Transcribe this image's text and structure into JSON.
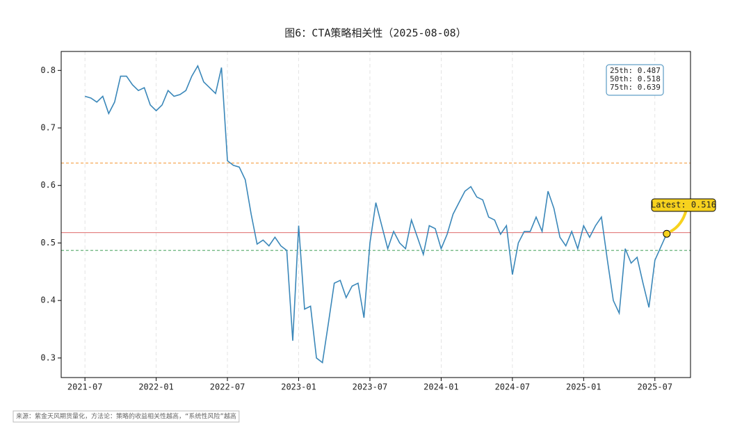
{
  "chart_data": {
    "type": "line",
    "title": "图6：CTA策略相关性（2025-08-08）",
    "source": "来源：紫金天风期货量化，方法论：策略的收益相关性越高，“系统性风险”越高",
    "x": [
      "2021-07",
      "2021-07",
      "2021-08",
      "2021-08",
      "2021-09",
      "2021-09",
      "2021-10",
      "2021-10",
      "2021-11",
      "2021-11",
      "2021-12",
      "2021-12",
      "2022-01",
      "2022-01",
      "2022-02",
      "2022-02",
      "2022-03",
      "2022-03",
      "2022-04",
      "2022-04",
      "2022-05",
      "2022-05",
      "2022-06",
      "2022-06",
      "2022-07",
      "2022-07",
      "2022-08",
      "2022-08",
      "2022-09",
      "2022-09",
      "2022-10",
      "2022-10",
      "2022-11",
      "2022-11",
      "2022-12",
      "2022-12",
      "2023-01",
      "2023-01",
      "2023-02",
      "2023-02",
      "2023-03",
      "2023-03",
      "2023-04",
      "2023-04",
      "2023-05",
      "2023-05",
      "2023-06",
      "2023-06",
      "2023-07",
      "2023-07",
      "2023-08",
      "2023-08",
      "2023-09",
      "2023-09",
      "2023-10",
      "2023-10",
      "2023-11",
      "2023-11",
      "2023-12",
      "2023-12",
      "2024-01",
      "2024-01",
      "2024-02",
      "2024-02",
      "2024-03",
      "2024-03",
      "2024-04",
      "2024-04",
      "2024-05",
      "2024-05",
      "2024-06",
      "2024-06",
      "2024-07",
      "2024-07",
      "2024-08",
      "2024-08",
      "2024-09",
      "2024-09",
      "2024-10",
      "2024-10",
      "2024-11",
      "2024-11",
      "2024-12",
      "2024-12",
      "2025-01",
      "2025-01",
      "2025-02",
      "2025-02",
      "2025-03",
      "2025-03",
      "2025-04",
      "2025-04",
      "2025-05",
      "2025-05",
      "2025-06",
      "2025-06",
      "2025-07",
      "2025-07",
      "2025-08"
    ],
    "series": [
      {
        "name": "CTA策略相关性",
        "color": "#3a87b9",
        "values": [
          0.755,
          0.752,
          0.745,
          0.755,
          0.725,
          0.745,
          0.79,
          0.79,
          0.775,
          0.765,
          0.77,
          0.74,
          0.73,
          0.74,
          0.765,
          0.755,
          0.758,
          0.765,
          0.79,
          0.808,
          0.78,
          0.77,
          0.76,
          0.805,
          0.643,
          0.635,
          0.632,
          0.61,
          0.55,
          0.498,
          0.505,
          0.495,
          0.51,
          0.495,
          0.487,
          0.33,
          0.53,
          0.385,
          0.39,
          0.3,
          0.292,
          0.36,
          0.43,
          0.435,
          0.405,
          0.425,
          0.43,
          0.37,
          0.5,
          0.57,
          0.53,
          0.49,
          0.52,
          0.5,
          0.49,
          0.54,
          0.51,
          0.48,
          0.53,
          0.525,
          0.49,
          0.515,
          0.55,
          0.57,
          0.59,
          0.598,
          0.58,
          0.575,
          0.545,
          0.54,
          0.515,
          0.53,
          0.445,
          0.5,
          0.52,
          0.52,
          0.545,
          0.52,
          0.59,
          0.56,
          0.51,
          0.495,
          0.52,
          0.49,
          0.53,
          0.51,
          0.53,
          0.545,
          0.47,
          0.4,
          0.378,
          0.49,
          0.465,
          0.475,
          0.43,
          0.388,
          0.47,
          0.493,
          0.516
        ]
      }
    ],
    "xlim": [
      "2021-05",
      "2025-10"
    ],
    "xticks": [
      "2021-07",
      "2022-01",
      "2022-07",
      "2023-01",
      "2023-07",
      "2024-01",
      "2024-07",
      "2025-01",
      "2025-07"
    ],
    "ylim": [
      0.266,
      0.833
    ],
    "yticks": [
      0.3,
      0.4,
      0.5,
      0.6,
      0.7,
      0.8
    ],
    "xgrid": true,
    "reference_lines": [
      {
        "label": "25th: 0.487",
        "value": 0.487,
        "color": "#55a868",
        "style": "dashed"
      },
      {
        "label": "50th: 0.518",
        "value": 0.518,
        "color": "#e27c7c",
        "style": "solid"
      },
      {
        "label": "75th: 0.639",
        "value": 0.639,
        "color": "#f5a653",
        "style": "dashed"
      }
    ],
    "latest_label": "Latest: 0.516",
    "latest_color": "#f7d21e"
  }
}
